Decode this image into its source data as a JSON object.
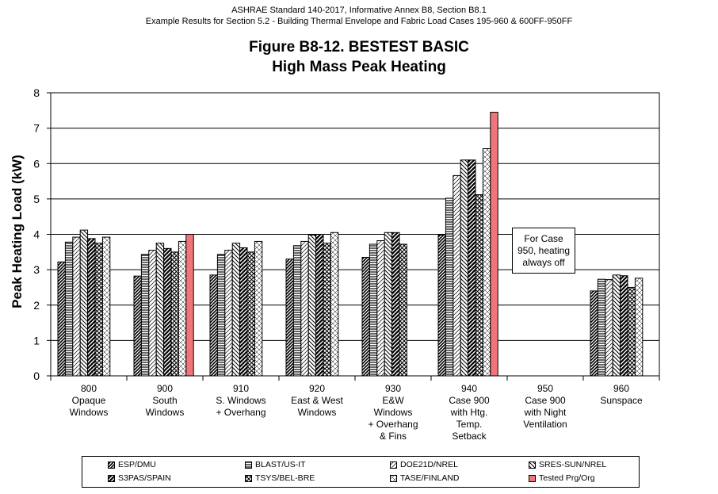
{
  "header": {
    "line1": "ASHRAE Standard 140-2017, Informative Annex B8, Section B8.1",
    "line2": "Example Results for Section 5.2 - Building Thermal Envelope and Fabric Load Cases 195-960 & 600FF-950FF"
  },
  "title": {
    "line1": "Figure B8-12.  BESTEST BASIC",
    "line2": "High Mass Peak Heating"
  },
  "note": {
    "lines": [
      "For Case",
      "950, heating",
      "always off"
    ]
  },
  "chart_data": {
    "type": "bar",
    "ylabel": "Peak Heating Load (kW)",
    "xlabel": "",
    "ylim": [
      0,
      8
    ],
    "yticks": [
      0,
      1,
      2,
      3,
      4,
      5,
      6,
      7,
      8
    ],
    "grid": true,
    "legend_position": "bottom",
    "categories": [
      [
        "800",
        "Opaque",
        "Windows"
      ],
      [
        "900",
        "South",
        "Windows"
      ],
      [
        "910",
        "S. Windows",
        "+ Overhang"
      ],
      [
        "920",
        "East & West",
        "Windows"
      ],
      [
        "930",
        "E&W",
        "Windows",
        "+ Overhang",
        "& Fins"
      ],
      [
        "940",
        "Case 900",
        "with Htg.",
        "Temp.",
        "Setback"
      ],
      [
        "950",
        "Case 900",
        "with Night",
        "Ventilation"
      ],
      [
        "960",
        "Sunspace"
      ]
    ],
    "series": [
      {
        "name": "ESP/DMU",
        "pattern": "diag-fwd-dense",
        "values": [
          3.22,
          2.82,
          2.85,
          3.3,
          3.35,
          3.98,
          null,
          2.4
        ]
      },
      {
        "name": "BLAST/US-IT",
        "pattern": "horizontal",
        "values": [
          3.78,
          3.43,
          3.43,
          3.68,
          3.72,
          5.02,
          null,
          2.73
        ]
      },
      {
        "name": "DOE21D/NREL",
        "pattern": "diag-fwd-light",
        "values": [
          3.92,
          3.55,
          3.55,
          3.8,
          3.82,
          5.66,
          null,
          2.72
        ]
      },
      {
        "name": "SRES-SUN/NREL",
        "pattern": "diag-back",
        "values": [
          4.12,
          3.75,
          3.75,
          3.98,
          4.05,
          6.1,
          null,
          2.85
        ]
      },
      {
        "name": "S3PAS/SPAIN",
        "pattern": "diag-fwd-bold",
        "values": [
          3.88,
          3.6,
          3.62,
          4.0,
          4.05,
          6.1,
          null,
          2.83
        ]
      },
      {
        "name": "TSYS/BEL-BRE",
        "pattern": "diag-cross",
        "values": [
          3.75,
          3.5,
          3.5,
          3.75,
          3.72,
          5.12,
          null,
          2.5
        ]
      },
      {
        "name": "TASE/FINLAND",
        "pattern": "diag-cross-light",
        "values": [
          3.92,
          3.8,
          3.8,
          4.05,
          null,
          6.42,
          null,
          2.76
        ]
      },
      {
        "name": "Tested Prg/Org",
        "pattern": "solid",
        "color": "#f0757a",
        "values": [
          null,
          4.0,
          null,
          null,
          null,
          7.45,
          null,
          null
        ]
      }
    ]
  }
}
